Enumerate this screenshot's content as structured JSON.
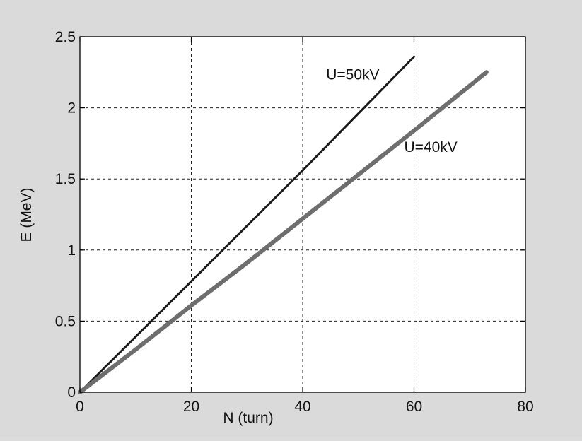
{
  "chart_data": {
    "type": "line",
    "title": "",
    "xlabel": "N (turn)",
    "ylabel": "E (MeV)",
    "xlim": [
      0,
      80
    ],
    "ylim": [
      0,
      2.5
    ],
    "xticks": [
      0,
      20,
      40,
      60,
      80
    ],
    "yticks": [
      0,
      0.5,
      1,
      1.5,
      2,
      2.5
    ],
    "xtick_labels": [
      "0",
      "20",
      "40",
      "60",
      "80"
    ],
    "ytick_labels": [
      "0",
      "0.5",
      "1",
      "1.5",
      "2",
      "2.5"
    ],
    "grid": true,
    "series": [
      {
        "name": "U=50kV",
        "color": "#1a1a1a",
        "x": [
          0,
          10,
          20,
          30,
          40,
          50,
          60
        ],
        "y": [
          0,
          0.39,
          0.78,
          1.17,
          1.56,
          1.96,
          2.36
        ]
      },
      {
        "name": "U=40kV",
        "color": "#6e6e6e",
        "x": [
          0,
          10,
          20,
          30,
          40,
          50,
          60,
          73
        ],
        "y": [
          0,
          0.3,
          0.61,
          0.91,
          1.22,
          1.53,
          1.84,
          2.25
        ]
      }
    ],
    "annotations": [
      {
        "text": "U=50kV",
        "x": 49,
        "y": 2.2
      },
      {
        "text": "U=40kV",
        "x": 63,
        "y": 1.69
      }
    ]
  }
}
